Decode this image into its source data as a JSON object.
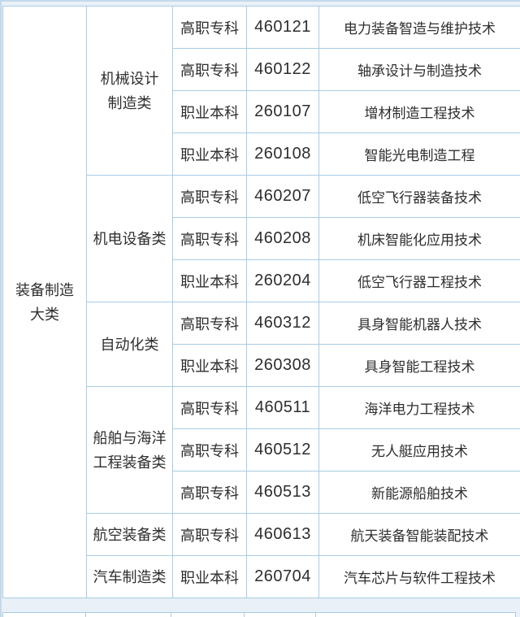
{
  "page": {
    "background_color": "#e9f0f7",
    "border_color": "#a9cce4",
    "cell_background": "#ffffff",
    "text_color": "#2e2e2e"
  },
  "table": {
    "top_category": {
      "label": "装备制造大类",
      "lines": [
        "装备制造",
        "大类"
      ]
    },
    "columns": [
      "top-category",
      "category",
      "level",
      "code",
      "major-name"
    ],
    "sections": [
      {
        "category": "机械设计制造类",
        "category_lines": [
          "机械设计",
          "制造类"
        ],
        "rows": [
          {
            "level": "高职专科",
            "code": "460121",
            "major": "电力装备智造与维护技术"
          },
          {
            "level": "高职专科",
            "code": "460122",
            "major": "轴承设计与制造技术"
          },
          {
            "level": "职业本科",
            "code": "260107",
            "major": "增材制造工程技术"
          },
          {
            "level": "职业本科",
            "code": "260108",
            "major": "智能光电制造工程"
          }
        ]
      },
      {
        "category": "机电设备类",
        "category_lines": [
          "机电设备类"
        ],
        "rows": [
          {
            "level": "高职专科",
            "code": "460207",
            "major": "低空飞行器装备技术"
          },
          {
            "level": "高职专科",
            "code": "460208",
            "major": "机床智能化应用技术"
          },
          {
            "level": "职业本科",
            "code": "260204",
            "major": "低空飞行器工程技术"
          }
        ]
      },
      {
        "category": "自动化类",
        "category_lines": [
          "自动化类"
        ],
        "rows": [
          {
            "level": "高职专科",
            "code": "460312",
            "major": "具身智能机器人技术"
          },
          {
            "level": "职业本科",
            "code": "260308",
            "major": "具身智能工程技术"
          }
        ]
      },
      {
        "category": "船舶与海洋工程装备类",
        "category_lines": [
          "船舶与海洋",
          "工程装备类"
        ],
        "rows": [
          {
            "level": "高职专科",
            "code": "460511",
            "major": "海洋电力工程技术"
          },
          {
            "level": "高职专科",
            "code": "460512",
            "major": "无人艇应用技术"
          },
          {
            "level": "高职专科",
            "code": "460513",
            "major": "新能源船舶技术"
          }
        ]
      },
      {
        "category": "航空装备类",
        "category_lines": [
          "航空装备类"
        ],
        "rows": [
          {
            "level": "高职专科",
            "code": "460613",
            "major": "航天装备智能装配技术"
          }
        ]
      },
      {
        "category": "汽车制造类",
        "category_lines": [
          "汽车制造类"
        ],
        "rows": [
          {
            "level": "职业本科",
            "code": "260704",
            "major": "汽车芯片与软件工程技术"
          }
        ]
      }
    ]
  }
}
